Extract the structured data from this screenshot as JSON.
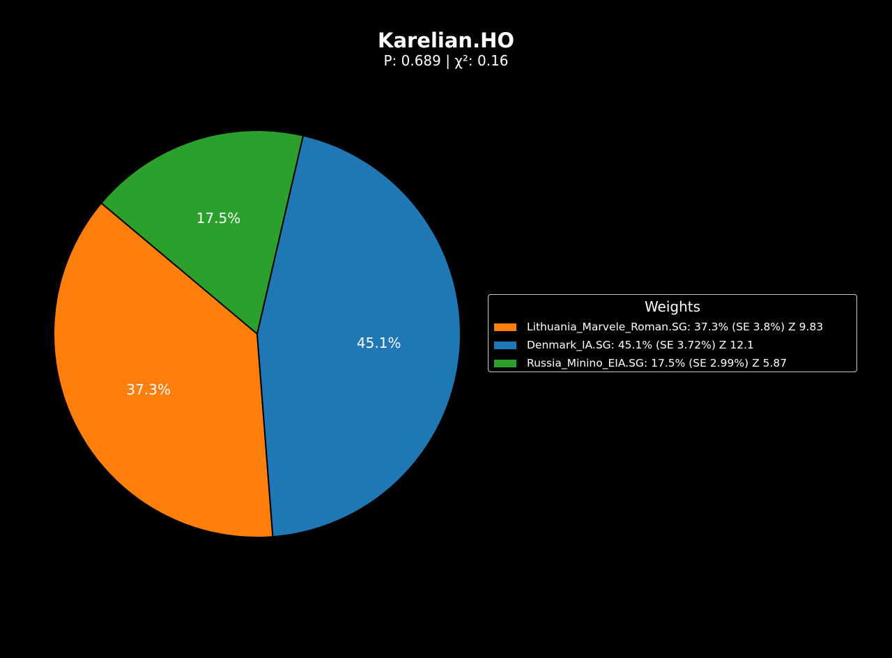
{
  "chart_data": {
    "type": "pie",
    "title": "Karelian.HO",
    "subtitle": "P: 0.689 | χ²: 0.16",
    "legend_title": "Weights",
    "legend_placement": "right",
    "slices": [
      {
        "name": "Lithuania_Marvele_Roman.SG",
        "value": 37.3,
        "label": "37.3%",
        "legend_text": "Lithuania_Marvele_Roman.SG: 37.3% (SE 3.8%) Z 9.83",
        "color": "#ff7f0e"
      },
      {
        "name": "Denmark_IA.SG",
        "value": 45.1,
        "label": "45.1%",
        "legend_text": "Denmark_IA.SG: 45.1% (SE 3.72%) Z 12.1",
        "color": "#1f77b4"
      },
      {
        "name": "Russia_Minino_EIA.SG",
        "value": 17.5,
        "label": "17.5%",
        "legend_text": "Russia_Minino_EIA.SG: 17.5% (SE 2.99%) Z 5.87",
        "color": "#2ca02c"
      }
    ]
  }
}
